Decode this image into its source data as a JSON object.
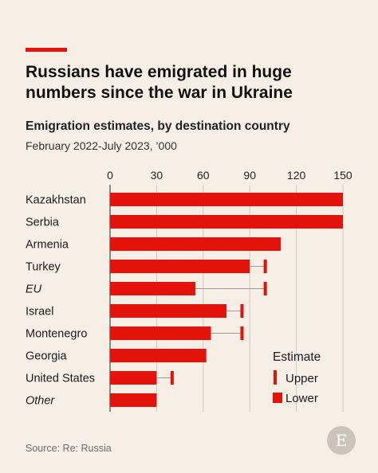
{
  "header": {
    "title": "Russians have emigrated in huge numbers since the war in Ukraine",
    "subtitle": "Emigration estimates, by destination country",
    "subsubtitle": "February 2022-July 2023, ’000"
  },
  "footer": {
    "source": "Source: Re: Russia",
    "logo_letter": "E"
  },
  "colors": {
    "bar": "#e3120b",
    "background": "#f7efe6",
    "grid": "#cfcac4"
  },
  "chart_data": {
    "type": "bar",
    "orientation": "horizontal",
    "categories": [
      "Kazakhstan",
      "Serbia",
      "Armenia",
      "Turkey",
      "EU",
      "Israel",
      "Montenegro",
      "Georgia",
      "United States",
      "Other"
    ],
    "italic_categories": [
      "EU",
      "Other"
    ],
    "series": [
      {
        "name": "Lower",
        "values": [
          150,
          150,
          110,
          90,
          55,
          75,
          65,
          62,
          30,
          30
        ]
      },
      {
        "name": "Upper",
        "values": [
          null,
          null,
          null,
          100,
          100,
          85,
          85,
          null,
          40,
          null
        ]
      }
    ],
    "xticks": [
      0,
      30,
      60,
      90,
      120,
      150
    ],
    "xlim": [
      0,
      150
    ],
    "grid": true,
    "legend": {
      "title": "Estimate",
      "position": "bottom-right",
      "items": [
        "Upper",
        "Lower"
      ]
    }
  }
}
